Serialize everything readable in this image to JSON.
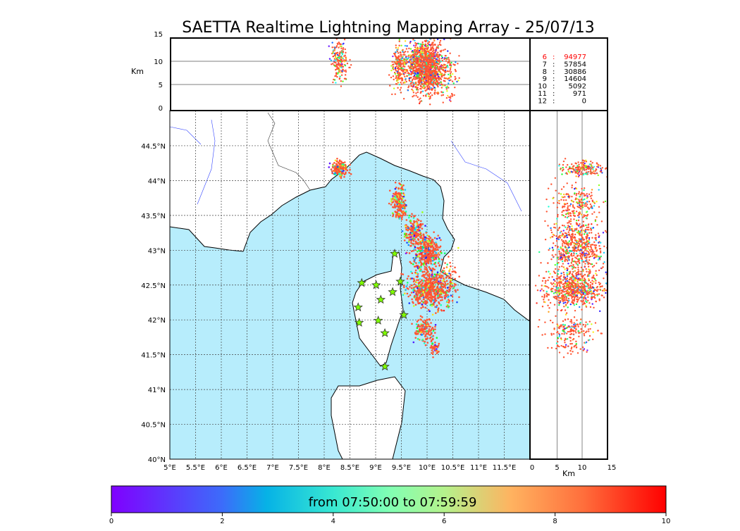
{
  "title": "SAETTA Realtime Lightning Mapping Array - 25/07/13",
  "chart_data": {
    "type": "scatter",
    "title": "SAETTA Realtime Lightning Mapping Array - 25/07/13",
    "map": {
      "lon_range": [
        5,
        12
      ],
      "lat_range": [
        40,
        45
      ],
      "x_ticks": [
        "5°E",
        "5.5°E",
        "6°E",
        "6.5°E",
        "7°E",
        "7.5°E",
        "8°E",
        "8.5°E",
        "9°E",
        "9.5°E",
        "10°E",
        "10.5°E",
        "11°E",
        "11.5°E"
      ],
      "x_tick_values": [
        5,
        5.5,
        6,
        6.5,
        7,
        7.5,
        8,
        8.5,
        9,
        9.5,
        10,
        10.5,
        11,
        11.5
      ],
      "y_ticks": [
        "40°N",
        "40.5°N",
        "41°N",
        "41.5°N",
        "42°N",
        "42.5°N",
        "43°N",
        "43.5°N",
        "44°N",
        "44.5°N"
      ],
      "y_tick_values": [
        40,
        40.5,
        41,
        41.5,
        42,
        42.5,
        43,
        43.5,
        44,
        44.5
      ],
      "grid": true
    },
    "altitude_panel": {
      "ylabel": "Km",
      "y_ticks": [
        "0",
        "5",
        "10",
        "15"
      ],
      "y_tick_values": [
        0,
        5,
        10,
        15
      ]
    },
    "side_panel": {
      "xlabel": "Km",
      "x_ticks": [
        "0",
        "5",
        "10",
        "15"
      ],
      "x_tick_values": [
        0,
        5,
        10,
        15
      ]
    },
    "station_counts": [
      {
        "stations": "6",
        "sep": ":",
        "count": "94977",
        "highlight": true
      },
      {
        "stations": "7",
        "sep": ":",
        "count": "57854"
      },
      {
        "stations": "8",
        "sep": ":",
        "count": "30886"
      },
      {
        "stations": "9",
        "sep": ":",
        "count": "14604"
      },
      {
        "stations": "10",
        "sep": ":",
        "count": "5092"
      },
      {
        "stations": "11",
        "sep": ":",
        "count": "971"
      },
      {
        "stations": "12",
        "sep": ":",
        "count": "0"
      }
    ],
    "stations": [
      [
        8.73,
        42.53
      ],
      [
        9.01,
        42.5
      ],
      [
        9.48,
        42.55
      ],
      [
        9.37,
        42.95
      ],
      [
        9.33,
        42.4
      ],
      [
        9.1,
        42.29
      ],
      [
        8.66,
        42.18
      ],
      [
        8.68,
        41.96
      ],
      [
        9.05,
        41.99
      ],
      [
        9.55,
        42.07
      ],
      [
        9.18,
        41.81
      ],
      [
        9.18,
        41.33
      ]
    ],
    "lightning_clusters": [
      {
        "lon": 8.3,
        "lat": 44.17,
        "slon": 0.08,
        "slat": 0.05,
        "alt": 10,
        "salt": 2.2,
        "n": 180
      },
      {
        "lon": 9.45,
        "lat": 43.67,
        "slon": 0.07,
        "slat": 0.12,
        "alt": 9,
        "salt": 2.5,
        "n": 200
      },
      {
        "lon": 9.75,
        "lat": 43.25,
        "slon": 0.08,
        "slat": 0.12,
        "alt": 8.5,
        "salt": 2.5,
        "n": 200
      },
      {
        "lon": 10.0,
        "lat": 42.97,
        "slon": 0.12,
        "slat": 0.12,
        "alt": 9,
        "salt": 2.7,
        "n": 420
      },
      {
        "lon": 10.05,
        "lat": 42.43,
        "slon": 0.2,
        "slat": 0.12,
        "alt": 8.5,
        "salt": 2.8,
        "n": 600
      },
      {
        "lon": 9.95,
        "lat": 41.85,
        "slon": 0.1,
        "slat": 0.08,
        "alt": 8,
        "salt": 2.5,
        "n": 150
      },
      {
        "lon": 10.15,
        "lat": 41.6,
        "slon": 0.04,
        "slat": 0.05,
        "alt": 8,
        "salt": 2,
        "n": 40
      },
      {
        "lon": 10.45,
        "lat": 42.6,
        "slon": 0.1,
        "slat": 0.15,
        "alt": 7,
        "salt": 2.5,
        "n": 60
      }
    ],
    "colorbar": {
      "label": "from 07:50:00 to 07:59:59",
      "ticks": [
        "0",
        "2",
        "4",
        "6",
        "8",
        "10"
      ],
      "tick_values": [
        0,
        2,
        4,
        6,
        8,
        10
      ],
      "range": [
        0,
        10
      ]
    }
  },
  "colors": {
    "sea": "#b7edfc",
    "land": "#ffffff",
    "lightning": "#ff5533",
    "station": "#7fff00",
    "highlight": "#ff0000"
  }
}
